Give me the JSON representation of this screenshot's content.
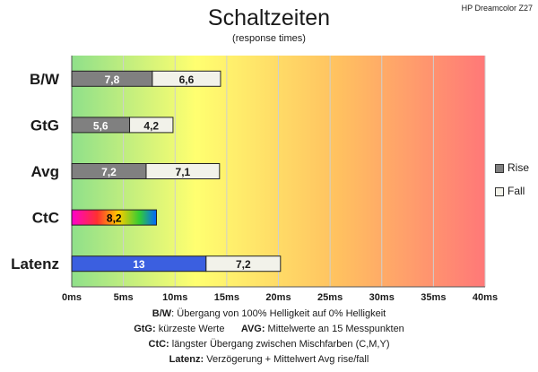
{
  "model_label": "HP Dreamcolor Z27",
  "chart_data": {
    "type": "bar",
    "orientation": "horizontal",
    "stacked": true,
    "title": "Schaltzeiten",
    "subtitle": "(response times)",
    "categories": [
      "B/W",
      "GtG",
      "Avg",
      "CtC",
      "Latenz"
    ],
    "series": [
      {
        "name": "Rise",
        "values": [
          7.8,
          5.6,
          7.2,
          8.2,
          13
        ]
      },
      {
        "name": "Fall",
        "values": [
          6.6,
          4.2,
          7.1,
          null,
          7.2
        ]
      }
    ],
    "value_labels": {
      "Rise": [
        "7,8",
        "5,6",
        "7,2",
        "8,2",
        "13"
      ],
      "Fall": [
        "6,6",
        "4,2",
        "7,1",
        "",
        "7,2"
      ]
    },
    "xlim": [
      0,
      40
    ],
    "xticks": [
      0,
      5,
      10,
      15,
      20,
      25,
      30,
      35,
      40
    ],
    "xtick_labels": [
      "0ms",
      "5ms",
      "10ms",
      "15ms",
      "20ms",
      "25ms",
      "30ms",
      "35ms",
      "40ms"
    ],
    "grid": true,
    "legend_position": "right",
    "background": "gradient green-yellow-red",
    "colors": {
      "rise": "#808080",
      "fall": "#f2f2ea",
      "latenz_rise": "#3b5fe0",
      "ctc": "rainbow",
      "bg_green": "#8fe08a",
      "bg_yellow": "#ffff70",
      "bg_red": "#ff7878"
    }
  },
  "notes": [
    {
      "key": "B/W",
      "text": ":  Übergang von 100% Helligkeit auf 0% Helligkeit"
    },
    {
      "key": "GtG:",
      "text": " kürzeste  Werte",
      "key2": "AVG:",
      "text2": " Mittelwerte  an 15 Messpunkten"
    },
    {
      "key": "CtC:",
      "text": " längster Übergang  zwischen Mischfarben (C,M,Y)"
    },
    {
      "key": "Latenz:",
      "text": " Verzögerung  + Mittelwert  Avg rise/fall"
    }
  ]
}
